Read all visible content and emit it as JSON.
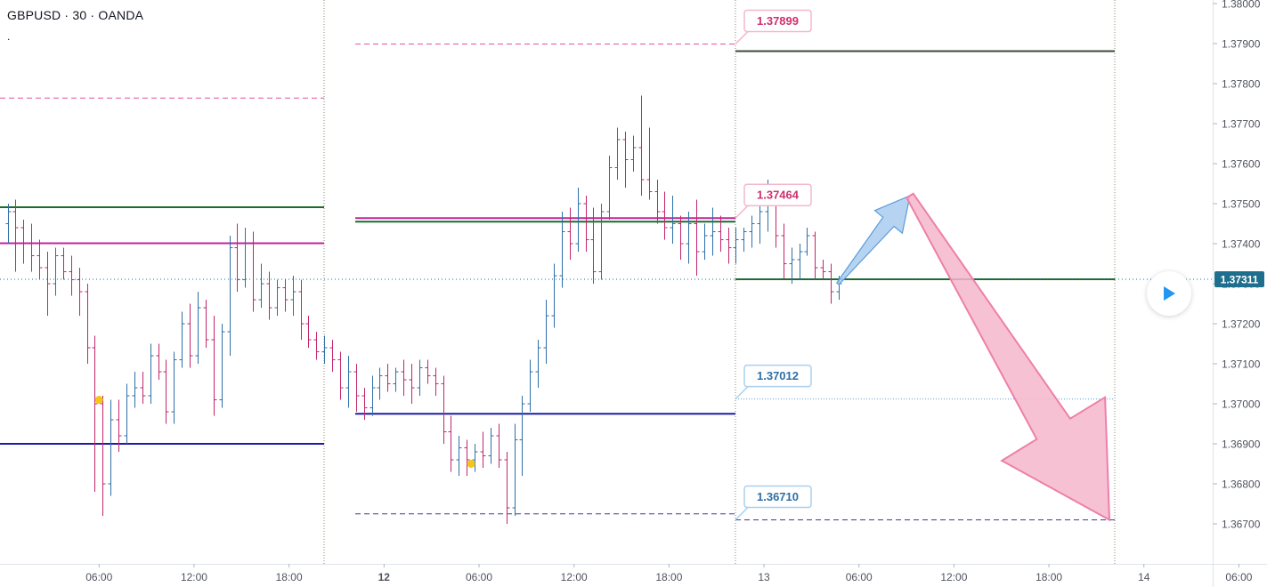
{
  "symbol": "GBPUSD · 30 · OANDA",
  "indicator_mark": ".",
  "colors": {
    "up_bar": "#2e6fa8",
    "down_bar": "#c2266c",
    "green_level": "#1b6b2a",
    "magenta_level": "#c2269c",
    "blue_level": "#1c1ca8",
    "pink_dashed": "#e4539a",
    "navy_dashed": "#3a3aa0",
    "current_price": "#1e6f8e",
    "arrow_up_fill": "#a9cdf0",
    "arrow_up_stroke": "#5b9bd8",
    "arrow_down_fill": "#f6b6cc",
    "arrow_down_stroke": "#ee7fa6",
    "dot": "#f5c518"
  },
  "chart_data": {
    "type": "bar",
    "title": "GBPUSD · 30 · OANDA",
    "series_style": "ohlc",
    "ylim": [
      1.3662,
      1.3804
    ],
    "y_ticks": [
      "1.36700",
      "1.36800",
      "1.36900",
      "1.37000",
      "1.37100",
      "1.37200",
      "1.37300",
      "1.37400",
      "1.37500",
      "1.37600",
      "1.37700",
      "1.37800",
      "1.37900",
      "1.38000"
    ],
    "x_ticks": [
      {
        "label": "06:00",
        "bar": 12,
        "bold": false
      },
      {
        "label": "12:00",
        "bar": 24,
        "bold": false
      },
      {
        "label": "18:00",
        "bar": 36,
        "bold": false
      },
      {
        "label": "12",
        "bar": 48,
        "bold": true
      },
      {
        "label": "06:00",
        "bar": 60,
        "bold": false
      },
      {
        "label": "12:00",
        "bar": 72,
        "bold": false
      },
      {
        "label": "18:00",
        "bar": 84,
        "bold": false
      },
      {
        "label": "13",
        "bar": 96,
        "bold": false
      },
      {
        "label": "06:00",
        "bar": 108,
        "bold": false
      },
      {
        "label": "12:00",
        "bar": 120,
        "bold": false
      },
      {
        "label": "18:00",
        "bar": 132,
        "bold": false
      },
      {
        "label": "14",
        "bar": 144,
        "bold": false
      },
      {
        "label": "06:00",
        "bar": 156,
        "bold": false
      }
    ],
    "bar_interval_minutes": 30,
    "session_separators_bar": [
      48,
      96,
      144
    ],
    "ohlc": [
      [
        1.3745,
        1.375,
        1.374,
        1.3748
      ],
      [
        1.3748,
        1.3751,
        1.3733,
        1.3744
      ],
      [
        1.3744,
        1.3746,
        1.3735,
        1.374
      ],
      [
        1.374,
        1.3745,
        1.3733,
        1.3737
      ],
      [
        1.3737,
        1.3741,
        1.3731,
        1.3734
      ],
      [
        1.3734,
        1.3738,
        1.3722,
        1.373
      ],
      [
        1.373,
        1.3739,
        1.3727,
        1.3737
      ],
      [
        1.3737,
        1.3739,
        1.3731,
        1.3733
      ],
      [
        1.3733,
        1.3737,
        1.3727,
        1.3731
      ],
      [
        1.3731,
        1.3734,
        1.3722,
        1.3728
      ],
      [
        1.3728,
        1.373,
        1.371,
        1.3714
      ],
      [
        1.3714,
        1.3717,
        1.3678,
        1.37
      ],
      [
        1.37,
        1.3702,
        1.3672,
        1.368
      ],
      [
        1.368,
        1.3701,
        1.3677,
        1.3696
      ],
      [
        1.3696,
        1.3701,
        1.3688,
        1.3692
      ],
      [
        1.3692,
        1.3705,
        1.369,
        1.3702
      ],
      [
        1.3702,
        1.3708,
        1.3699,
        1.3704
      ],
      [
        1.3704,
        1.3708,
        1.37,
        1.3702
      ],
      [
        1.3702,
        1.3715,
        1.37,
        1.3712
      ],
      [
        1.3712,
        1.3715,
        1.3706,
        1.3708
      ],
      [
        1.3708,
        1.3711,
        1.3695,
        1.3698
      ],
      [
        1.3698,
        1.3713,
        1.3695,
        1.3711
      ],
      [
        1.3711,
        1.3723,
        1.3709,
        1.372
      ],
      [
        1.372,
        1.3725,
        1.3709,
        1.3712
      ],
      [
        1.3712,
        1.3728,
        1.371,
        1.3724
      ],
      [
        1.3724,
        1.3726,
        1.3714,
        1.3716
      ],
      [
        1.3716,
        1.3722,
        1.3697,
        1.3701
      ],
      [
        1.3701,
        1.372,
        1.3699,
        1.3718
      ],
      [
        1.3718,
        1.3742,
        1.3712,
        1.3739
      ],
      [
        1.3739,
        1.3745,
        1.3728,
        1.3731
      ],
      [
        1.3731,
        1.3744,
        1.3729,
        1.374
      ],
      [
        1.374,
        1.3743,
        1.3723,
        1.3726
      ],
      [
        1.3726,
        1.3735,
        1.3724,
        1.373
      ],
      [
        1.373,
        1.3733,
        1.3721,
        1.3724
      ],
      [
        1.3724,
        1.3731,
        1.3722,
        1.3729
      ],
      [
        1.3729,
        1.3731,
        1.3723,
        1.3726
      ],
      [
        1.3726,
        1.3732,
        1.3722,
        1.3728
      ],
      [
        1.3728,
        1.3731,
        1.3716,
        1.372
      ],
      [
        1.372,
        1.3722,
        1.3714,
        1.3716
      ],
      [
        1.3716,
        1.3718,
        1.3711,
        1.3713
      ],
      [
        1.3713,
        1.3717,
        1.371,
        1.3714
      ],
      [
        1.3714,
        1.3716,
        1.3708,
        1.3711
      ],
      [
        1.3711,
        1.3713,
        1.3701,
        1.3704
      ],
      [
        1.3704,
        1.3712,
        1.3699,
        1.3708
      ],
      [
        1.3708,
        1.371,
        1.3698,
        1.3702
      ],
      [
        1.3702,
        1.3704,
        1.3696,
        1.3699
      ],
      [
        1.3699,
        1.3707,
        1.3697,
        1.3704
      ],
      [
        1.3704,
        1.3709,
        1.3701,
        1.3707
      ],
      [
        1.3707,
        1.371,
        1.3703,
        1.3705
      ],
      [
        1.3705,
        1.3709,
        1.3703,
        1.3708
      ],
      [
        1.3708,
        1.3711,
        1.3702,
        1.3706
      ],
      [
        1.3706,
        1.371,
        1.37,
        1.3704
      ],
      [
        1.3704,
        1.3711,
        1.3702,
        1.3709
      ],
      [
        1.3709,
        1.3711,
        1.3705,
        1.3707
      ],
      [
        1.3707,
        1.3709,
        1.3702,
        1.3705
      ],
      [
        1.3705,
        1.3707,
        1.369,
        1.3693
      ],
      [
        1.3693,
        1.3697,
        1.3683,
        1.3686
      ],
      [
        1.3686,
        1.3692,
        1.3682,
        1.3689
      ],
      [
        1.3689,
        1.3691,
        1.3682,
        1.3686
      ],
      [
        1.3686,
        1.369,
        1.3683,
        1.3688
      ],
      [
        1.3688,
        1.3693,
        1.3684,
        1.3687
      ],
      [
        1.3687,
        1.3694,
        1.3685,
        1.3692
      ],
      [
        1.3692,
        1.3695,
        1.3684,
        1.3686
      ],
      [
        1.3686,
        1.3688,
        1.367,
        1.3674
      ],
      [
        1.3674,
        1.3695,
        1.3672,
        1.3691
      ],
      [
        1.3691,
        1.3702,
        1.3682,
        1.37
      ],
      [
        1.37,
        1.3711,
        1.3698,
        1.3708
      ],
      [
        1.3708,
        1.3716,
        1.3704,
        1.3714
      ],
      [
        1.3714,
        1.3726,
        1.371,
        1.3722
      ],
      [
        1.3722,
        1.3735,
        1.3719,
        1.3732
      ],
      [
        1.3732,
        1.3748,
        1.3729,
        1.3743
      ],
      [
        1.3743,
        1.3749,
        1.3736,
        1.374
      ],
      [
        1.374,
        1.3754,
        1.3738,
        1.375
      ],
      [
        1.375,
        1.3752,
        1.3738,
        1.3741
      ],
      [
        1.3741,
        1.3749,
        1.373,
        1.3733
      ],
      [
        1.3733,
        1.375,
        1.3731,
        1.3748
      ],
      [
        1.3748,
        1.3762,
        1.3746,
        1.3759
      ],
      [
        1.3759,
        1.3769,
        1.3756,
        1.3766
      ],
      [
        1.3766,
        1.3768,
        1.3754,
        1.3761
      ],
      [
        1.3761,
        1.3767,
        1.3758,
        1.3764
      ],
      [
        1.3764,
        1.3777,
        1.3752,
        1.3756
      ],
      [
        1.3756,
        1.3769,
        1.3751,
        1.3753
      ],
      [
        1.3753,
        1.3756,
        1.3745,
        1.3748
      ],
      [
        1.3748,
        1.3753,
        1.3741,
        1.3744
      ],
      [
        1.3744,
        1.3752,
        1.374,
        1.3745
      ],
      [
        1.3745,
        1.3747,
        1.3736,
        1.374
      ],
      [
        1.374,
        1.3748,
        1.3735,
        1.3745
      ],
      [
        1.3745,
        1.3751,
        1.3732,
        1.3738
      ],
      [
        1.3738,
        1.3745,
        1.3736,
        1.3742
      ],
      [
        1.3742,
        1.3749,
        1.3737,
        1.3743
      ],
      [
        1.3743,
        1.3747,
        1.3738,
        1.3741
      ],
      [
        1.3741,
        1.3744,
        1.3735,
        1.3739
      ],
      [
        1.3739,
        1.3744,
        1.3735,
        1.3741
      ],
      [
        1.3741,
        1.3744,
        1.3738,
        1.3743
      ],
      [
        1.3743,
        1.3747,
        1.3739,
        1.3745
      ],
      [
        1.3745,
        1.3751,
        1.374,
        1.3748
      ],
      [
        1.3748,
        1.3756,
        1.3743,
        1.3751
      ],
      [
        1.3751,
        1.3754,
        1.3739,
        1.3742
      ],
      [
        1.3742,
        1.3745,
        1.3731,
        1.3735
      ],
      [
        1.3735,
        1.3739,
        1.373,
        1.3736
      ],
      [
        1.3736,
        1.374,
        1.3731,
        1.3738
      ],
      [
        1.3738,
        1.3744,
        1.3737,
        1.3742
      ],
      [
        1.3742,
        1.3743,
        1.3731,
        1.3734
      ],
      [
        1.3734,
        1.3736,
        1.3731,
        1.3733
      ],
      [
        1.3733,
        1.3735,
        1.3725,
        1.3728
      ],
      [
        1.3728,
        1.3732,
        1.3726,
        1.373
      ]
    ],
    "level_lines": [
      {
        "name": "pink-dashed-day1",
        "price": 1.37764,
        "from_bar": 0,
        "to_bar": 47,
        "style": "dashed",
        "color_key": "pink_dashed"
      },
      {
        "name": "green-day1",
        "price": 1.37491,
        "from_bar": 0,
        "to_bar": 47,
        "style": "solid",
        "color_key": "green_level"
      },
      {
        "name": "magenta-day1",
        "price": 1.37401,
        "from_bar": 0,
        "to_bar": 47,
        "style": "solid",
        "color_key": "magenta_level"
      },
      {
        "name": "blue-day1",
        "price": 1.369,
        "from_bar": 0,
        "to_bar": 47,
        "style": "solid",
        "color_key": "blue_level"
      },
      {
        "name": "pink-dashed-day2",
        "price": 1.37899,
        "from_bar": 51,
        "to_bar": 95,
        "style": "dashed",
        "color_key": "pink_dashed"
      },
      {
        "name": "magenta-day2",
        "price": 1.37464,
        "from_bar": 51,
        "to_bar": 95,
        "style": "solid",
        "color_key": "magenta_level"
      },
      {
        "name": "green-day2",
        "price": 1.37455,
        "from_bar": 51,
        "to_bar": 95,
        "style": "solid",
        "color_key": "green_level"
      },
      {
        "name": "blue-day2",
        "price": 1.36975,
        "from_bar": 51,
        "to_bar": 95,
        "style": "solid",
        "color_key": "blue_level"
      },
      {
        "name": "navy-dashed-day2",
        "price": 1.36725,
        "from_bar": 51,
        "to_bar": 95,
        "style": "dashed",
        "color_key": "navy_dashed"
      },
      {
        "name": "dark-solid-day3",
        "price": 1.37881,
        "from_bar": 96,
        "to_bar": 144,
        "style": "solid",
        "color_key": "green_level"
      },
      {
        "name": "green-day3",
        "price": 1.37311,
        "from_bar": 96,
        "to_bar": 144,
        "style": "solid",
        "color_key": "green_level"
      },
      {
        "name": "blue-dotted-day3",
        "price": 1.37012,
        "from_bar": 96,
        "to_bar": 144,
        "style": "dotted",
        "color_key": "arrow_up_stroke"
      },
      {
        "name": "navy-dashed-day3",
        "price": 1.3671,
        "from_bar": 96,
        "to_bar": 144,
        "style": "dashed",
        "color_key": "navy_dashed"
      }
    ],
    "price_labels": [
      {
        "text": "1.37899",
        "price": 1.37899,
        "anchor_bar": 96,
        "anchor_price": 1.37899,
        "kind": "pink"
      },
      {
        "text": "1.37464",
        "price": 1.37464,
        "anchor_bar": 96,
        "anchor_price": 1.37464,
        "kind": "pink"
      },
      {
        "text": "1.37012",
        "price": 1.37012,
        "anchor_bar": 96,
        "anchor_price": 1.37012,
        "kind": "blue"
      },
      {
        "text": "1.36710",
        "price": 1.3671,
        "anchor_bar": 96,
        "anchor_price": 1.3671,
        "kind": "blue"
      }
    ],
    "markers": [
      {
        "bar": 12,
        "price": 1.3701,
        "shape": "dot"
      },
      {
        "bar": 59,
        "price": 1.3685,
        "shape": "dot"
      }
    ],
    "current_price": {
      "value": 1.37311,
      "label": "1.37311"
    },
    "projection": {
      "up_arrow": {
        "from_bar": 109,
        "from_price": 1.373,
        "to_bar": 119,
        "to_price": 1.3752
      },
      "down_arrow": {
        "from_bar": 119,
        "from_price": 1.3752,
        "to_bar": 144,
        "to_price": 1.3671
      }
    },
    "xlabel": "",
    "ylabel": ""
  }
}
